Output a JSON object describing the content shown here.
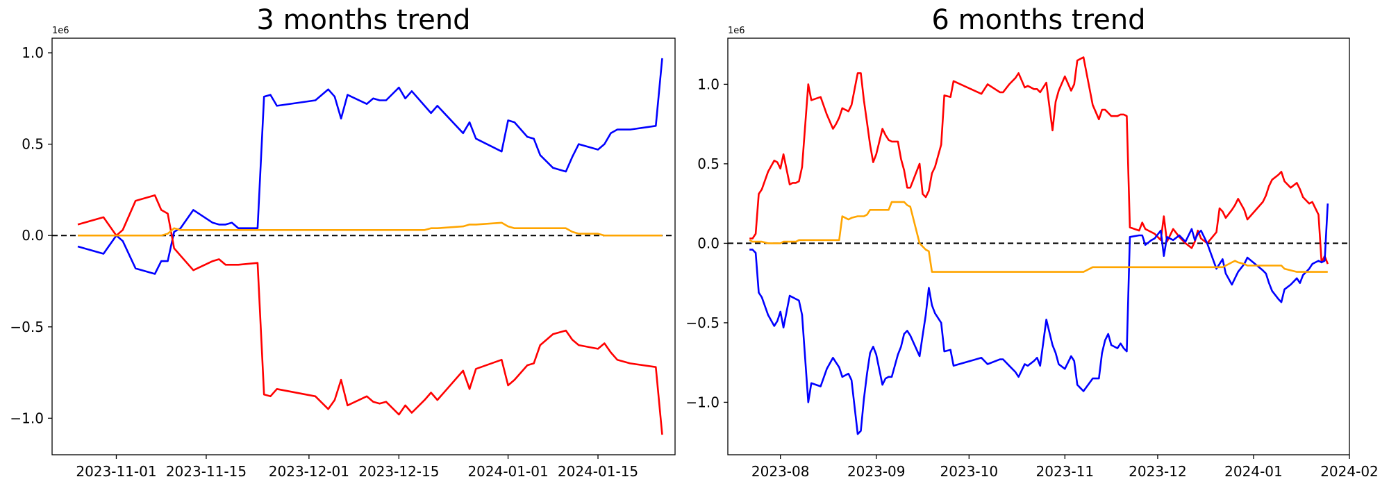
{
  "chart_data": [
    {
      "type": "line",
      "title": "3 months trend",
      "xlabel": "",
      "ylabel": "",
      "y_offset_label": "1e6",
      "x_type": "date",
      "xlim": [
        "2023-10-22",
        "2024-01-27"
      ],
      "ylim": [
        -1.2,
        1.08
      ],
      "xticks": [
        "2023-11-01",
        "2023-11-15",
        "2023-12-01",
        "2023-12-15",
        "2024-01-01",
        "2024-01-15"
      ],
      "yticks": [
        1.0,
        0.5,
        0.0,
        -0.5,
        -1.0
      ],
      "ytick_labels": [
        "1.0",
        "0.5",
        "0.0",
        "−0.5",
        "−1.0"
      ],
      "grid": false,
      "zero_line": true,
      "x": [
        "2023-10-26",
        "2023-10-30",
        "2023-11-01",
        "2023-11-02",
        "2023-11-04",
        "2023-11-07",
        "2023-11-08",
        "2023-11-09",
        "2023-11-10",
        "2023-11-11",
        "2023-11-13",
        "2023-11-16",
        "2023-11-17",
        "2023-11-18",
        "2023-11-19",
        "2023-11-20",
        "2023-11-23",
        "2023-11-24",
        "2023-11-25",
        "2023-11-26",
        "2023-12-02",
        "2023-12-04",
        "2023-12-05",
        "2023-12-06",
        "2023-12-07",
        "2023-12-10",
        "2023-12-11",
        "2023-12-12",
        "2023-12-13",
        "2023-12-15",
        "2023-12-16",
        "2023-12-17",
        "2023-12-19",
        "2023-12-20",
        "2023-12-21",
        "2023-12-25",
        "2023-12-26",
        "2023-12-27",
        "2023-12-31",
        "2024-01-01",
        "2024-01-02",
        "2024-01-04",
        "2024-01-05",
        "2024-01-06",
        "2024-01-08",
        "2024-01-10",
        "2024-01-11",
        "2024-01-12",
        "2024-01-15",
        "2024-01-16",
        "2024-01-17",
        "2024-01-18",
        "2024-01-20",
        "2024-01-24",
        "2024-01-25"
      ],
      "series": [
        {
          "color": "#0000ff",
          "values": [
            -0.06,
            -0.1,
            0.0,
            -0.03,
            -0.18,
            -0.21,
            -0.14,
            -0.14,
            0.02,
            0.04,
            0.14,
            0.07,
            0.06,
            0.06,
            0.07,
            0.04,
            0.04,
            0.76,
            0.77,
            0.71,
            0.74,
            0.8,
            0.76,
            0.64,
            0.77,
            0.72,
            0.75,
            0.74,
            0.74,
            0.81,
            0.75,
            0.79,
            0.71,
            0.67,
            0.71,
            0.56,
            0.62,
            0.53,
            0.46,
            0.63,
            0.62,
            0.54,
            0.53,
            0.44,
            0.37,
            0.35,
            0.43,
            0.5,
            0.47,
            0.5,
            0.56,
            0.58,
            0.58,
            0.6,
            0.97
          ]
        },
        {
          "color": "#ff0000",
          "values": [
            0.06,
            0.1,
            0.0,
            0.03,
            0.19,
            0.22,
            0.14,
            0.12,
            -0.07,
            -0.11,
            -0.19,
            -0.14,
            -0.13,
            -0.16,
            -0.16,
            -0.16,
            -0.15,
            -0.87,
            -0.88,
            -0.84,
            -0.88,
            -0.95,
            -0.9,
            -0.79,
            -0.93,
            -0.88,
            -0.91,
            -0.92,
            -0.91,
            -0.98,
            -0.93,
            -0.97,
            -0.9,
            -0.86,
            -0.9,
            -0.74,
            -0.84,
            -0.73,
            -0.68,
            -0.82,
            -0.79,
            -0.71,
            -0.7,
            -0.6,
            -0.54,
            -0.52,
            -0.57,
            -0.6,
            -0.62,
            -0.59,
            -0.64,
            -0.68,
            -0.7,
            -0.72,
            -1.09
          ]
        },
        {
          "color": "#ffa500",
          "values": [
            0.0,
            0.0,
            0.0,
            0.0,
            0.0,
            0.0,
            0.0,
            0.01,
            0.04,
            0.03,
            0.03,
            0.03,
            0.03,
            0.03,
            0.03,
            0.03,
            0.03,
            0.03,
            0.03,
            0.03,
            0.03,
            0.03,
            0.03,
            0.03,
            0.03,
            0.03,
            0.03,
            0.03,
            0.03,
            0.03,
            0.03,
            0.03,
            0.03,
            0.04,
            0.04,
            0.05,
            0.06,
            0.06,
            0.07,
            0.05,
            0.04,
            0.04,
            0.04,
            0.04,
            0.04,
            0.04,
            0.02,
            0.01,
            0.01,
            0.0,
            0.0,
            0.0,
            0.0,
            0.0,
            0.0
          ]
        }
      ]
    },
    {
      "type": "line",
      "title": "6 months trend",
      "xlabel": "",
      "ylabel": "",
      "y_offset_label": "1e6",
      "x_type": "date",
      "xlim": [
        "2023-07-15",
        "2024-02-01"
      ],
      "ylim": [
        -1.33,
        1.29
      ],
      "xticks": [
        "2023-08",
        "2023-09",
        "2023-10",
        "2023-11",
        "2023-12",
        "2024-01",
        "2024-02"
      ],
      "xtick_dates": [
        "2023-08-01",
        "2023-09-01",
        "2023-10-01",
        "2023-11-01",
        "2023-12-01",
        "2024-01-01",
        "2024-02-01"
      ],
      "yticks": [
        1.0,
        0.5,
        0.0,
        -0.5,
        -1.0
      ],
      "ytick_labels": [
        "1.0",
        "0.5",
        "0.0",
        "−0.5",
        "−1.0"
      ],
      "grid": false,
      "zero_line": true,
      "x": [
        "2023-07-22",
        "2023-07-23",
        "2023-07-24",
        "2023-07-25",
        "2023-07-26",
        "2023-07-28",
        "2023-07-30",
        "2023-07-31",
        "2023-08-01",
        "2023-08-02",
        "2023-08-04",
        "2023-08-05",
        "2023-08-06",
        "2023-08-07",
        "2023-08-08",
        "2023-08-10",
        "2023-08-11",
        "2023-08-14",
        "2023-08-16",
        "2023-08-18",
        "2023-08-19",
        "2023-08-20",
        "2023-08-21",
        "2023-08-22",
        "2023-08-23",
        "2023-08-24",
        "2023-08-26",
        "2023-08-27",
        "2023-08-28",
        "2023-08-29",
        "2023-08-30",
        "2023-08-31",
        "2023-09-01",
        "2023-09-03",
        "2023-09-04",
        "2023-09-05",
        "2023-09-06",
        "2023-09-08",
        "2023-09-09",
        "2023-09-10",
        "2023-09-11",
        "2023-09-12",
        "2023-09-15",
        "2023-09-16",
        "2023-09-17",
        "2023-09-18",
        "2023-09-19",
        "2023-09-20",
        "2023-09-22",
        "2023-09-23",
        "2023-09-25",
        "2023-09-26",
        "2023-10-05",
        "2023-10-07",
        "2023-10-11",
        "2023-10-12",
        "2023-10-14",
        "2023-10-16",
        "2023-10-17",
        "2023-10-19",
        "2023-10-20",
        "2023-10-22",
        "2023-10-23",
        "2023-10-24",
        "2023-10-26",
        "2023-10-28",
        "2023-10-29",
        "2023-10-30",
        "2023-11-01",
        "2023-11-03",
        "2023-11-04",
        "2023-11-05",
        "2023-11-06",
        "2023-11-07",
        "2023-11-10",
        "2023-11-12",
        "2023-11-13",
        "2023-11-14",
        "2023-11-15",
        "2023-11-16",
        "2023-11-18",
        "2023-11-19",
        "2023-11-20",
        "2023-11-21",
        "2023-11-22",
        "2023-11-25",
        "2023-11-26",
        "2023-11-27",
        "2023-11-29",
        "2023-11-30",
        "2023-12-02",
        "2023-12-03",
        "2023-12-04",
        "2023-12-06",
        "2023-12-08",
        "2023-12-10",
        "2023-12-12",
        "2023-12-13",
        "2023-12-14",
        "2023-12-15",
        "2023-12-17",
        "2023-12-20",
        "2023-12-21",
        "2023-12-22",
        "2023-12-23",
        "2023-12-25",
        "2023-12-26",
        "2023-12-27",
        "2023-12-29",
        "2023-12-30",
        "2024-01-04",
        "2024-01-05",
        "2024-01-06",
        "2024-01-07",
        "2024-01-09",
        "2024-01-10",
        "2024-01-11",
        "2024-01-13",
        "2024-01-15",
        "2024-01-16",
        "2024-01-17",
        "2024-01-19",
        "2024-01-20",
        "2024-01-21",
        "2024-01-22",
        "2024-01-23",
        "2024-01-24",
        "2024-01-25"
      ],
      "series": [
        {
          "color": "#ff0000",
          "values": [
            0.03,
            0.03,
            0.06,
            0.31,
            0.34,
            0.45,
            0.52,
            0.51,
            0.47,
            0.56,
            0.37,
            0.38,
            0.38,
            0.39,
            0.48,
            1.0,
            0.9,
            0.92,
            0.81,
            0.72,
            0.75,
            0.79,
            0.85,
            0.84,
            0.83,
            0.87,
            1.07,
            1.07,
            0.9,
            0.76,
            0.62,
            0.51,
            0.56,
            0.72,
            0.68,
            0.65,
            0.64,
            0.64,
            0.53,
            0.46,
            0.35,
            0.35,
            0.5,
            0.31,
            0.29,
            0.33,
            0.44,
            0.48,
            0.62,
            0.93,
            0.92,
            1.02,
            0.94,
            1.0,
            0.95,
            0.95,
            1.0,
            1.04,
            1.07,
            0.98,
            0.99,
            0.97,
            0.97,
            0.95,
            1.01,
            0.71,
            0.89,
            0.96,
            1.05,
            0.96,
            1.0,
            1.15,
            1.16,
            1.17,
            0.87,
            0.78,
            0.84,
            0.84,
            0.82,
            0.8,
            0.8,
            0.81,
            0.81,
            0.8,
            0.1,
            0.08,
            0.13,
            0.09,
            0.07,
            0.06,
            0.02,
            0.17,
            0.01,
            0.09,
            0.04,
            0.0,
            -0.03,
            0.01,
            0.08,
            0.03,
            0.0,
            0.07,
            0.22,
            0.2,
            0.16,
            0.21,
            0.24,
            0.28,
            0.21,
            0.15,
            0.26,
            0.3,
            0.36,
            0.4,
            0.43,
            0.45,
            0.39,
            0.35,
            0.38,
            0.34,
            0.29,
            0.25,
            0.26,
            0.22,
            0.18,
            -0.12,
            -0.08,
            -0.13
          ]
        },
        {
          "color": "#0000ff",
          "values": [
            -0.04,
            -0.04,
            -0.06,
            -0.31,
            -0.34,
            -0.45,
            -0.52,
            -0.49,
            -0.43,
            -0.53,
            -0.33,
            -0.34,
            -0.35,
            -0.36,
            -0.45,
            -1.0,
            -0.88,
            -0.9,
            -0.79,
            -0.72,
            -0.75,
            -0.78,
            -0.84,
            -0.83,
            -0.82,
            -0.86,
            -1.2,
            -1.18,
            -0.98,
            -0.82,
            -0.69,
            -0.65,
            -0.7,
            -0.89,
            -0.85,
            -0.84,
            -0.84,
            -0.7,
            -0.65,
            -0.57,
            -0.55,
            -0.58,
            -0.71,
            -0.58,
            -0.45,
            -0.28,
            -0.39,
            -0.44,
            -0.5,
            -0.68,
            -0.67,
            -0.77,
            -0.72,
            -0.76,
            -0.73,
            -0.73,
            -0.77,
            -0.81,
            -0.84,
            -0.76,
            -0.77,
            -0.74,
            -0.72,
            -0.77,
            -0.48,
            -0.64,
            -0.69,
            -0.76,
            -0.79,
            -0.71,
            -0.74,
            -0.89,
            -0.91,
            -0.93,
            -0.85,
            -0.85,
            -0.69,
            -0.61,
            -0.57,
            -0.64,
            -0.66,
            -0.63,
            -0.66,
            -0.68,
            0.04,
            0.05,
            0.05,
            -0.01,
            0.02,
            0.03,
            0.08,
            -0.08,
            0.04,
            0.02,
            0.05,
            0.01,
            0.09,
            0.02,
            0.06,
            0.08,
            0.0,
            -0.16,
            -0.13,
            -0.1,
            -0.19,
            -0.26,
            -0.22,
            -0.18,
            -0.13,
            -0.09,
            -0.17,
            -0.19,
            -0.25,
            -0.3,
            -0.35,
            -0.37,
            -0.29,
            -0.26,
            -0.22,
            -0.25,
            -0.2,
            -0.16,
            -0.13,
            -0.12,
            -0.11,
            -0.12,
            -0.11,
            0.25
          ]
        },
        {
          "color": "#ffa500",
          "values": [
            0.02,
            0.01,
            0.01,
            0.01,
            0.01,
            0.0,
            0.0,
            0.0,
            0.0,
            0.01,
            0.01,
            0.01,
            0.01,
            0.02,
            0.02,
            0.02,
            0.02,
            0.02,
            0.02,
            0.02,
            0.02,
            0.02,
            0.17,
            0.16,
            0.15,
            0.16,
            0.17,
            0.17,
            0.17,
            0.18,
            0.21,
            0.21,
            0.21,
            0.21,
            0.21,
            0.21,
            0.26,
            0.26,
            0.26,
            0.26,
            0.24,
            0.23,
            0.0,
            -0.02,
            -0.04,
            -0.05,
            -0.18,
            -0.18,
            -0.18,
            -0.18,
            -0.18,
            -0.18,
            -0.18,
            -0.18,
            -0.18,
            -0.18,
            -0.18,
            -0.18,
            -0.18,
            -0.18,
            -0.18,
            -0.18,
            -0.18,
            -0.18,
            -0.18,
            -0.18,
            -0.18,
            -0.18,
            -0.18,
            -0.18,
            -0.18,
            -0.18,
            -0.18,
            -0.18,
            -0.15,
            -0.15,
            -0.15,
            -0.15,
            -0.15,
            -0.15,
            -0.15,
            -0.15,
            -0.15,
            -0.15,
            -0.15,
            -0.15,
            -0.15,
            -0.15,
            -0.15,
            -0.15,
            -0.15,
            -0.15,
            -0.15,
            -0.15,
            -0.15,
            -0.15,
            -0.15,
            -0.15,
            -0.15,
            -0.15,
            -0.15,
            -0.15,
            -0.15,
            -0.15,
            -0.14,
            -0.12,
            -0.11,
            -0.12,
            -0.13,
            -0.14,
            -0.14,
            -0.14,
            -0.14,
            -0.14,
            -0.14,
            -0.14,
            -0.16,
            -0.17,
            -0.18,
            -0.18,
            -0.18,
            -0.18,
            -0.18,
            -0.18,
            -0.18,
            -0.18,
            -0.18,
            -0.18
          ]
        }
      ]
    }
  ]
}
